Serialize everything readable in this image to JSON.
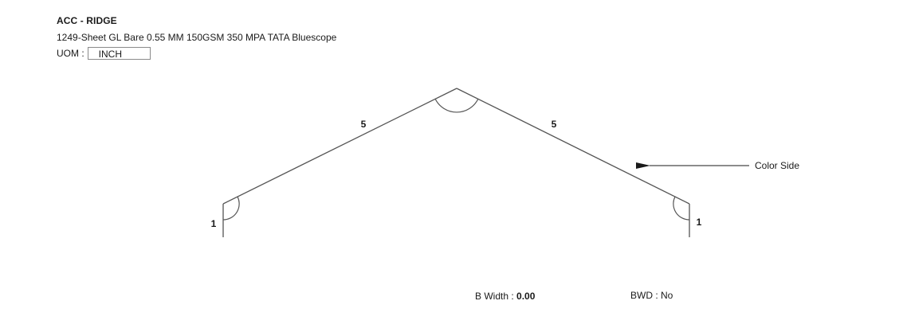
{
  "header": {
    "title": "ACC - RIDGE",
    "subtitle": "1249-Sheet GL Bare 0.55 MM 150GSM 350 MPA TATA Bluescope",
    "uom_label": "UOM :",
    "uom_value": "INCH"
  },
  "drawing": {
    "segments": [
      {
        "name": "left-leg",
        "label": "1"
      },
      {
        "name": "left-slope",
        "label": "5"
      },
      {
        "name": "right-slope",
        "label": "5"
      },
      {
        "name": "right-leg",
        "label": "1"
      }
    ],
    "color_side_label": "Color Side"
  },
  "footer": {
    "b_width_label": "B Width :",
    "b_width_value": "0.00",
    "bwd_label": "BWD :",
    "bwd_value": "No"
  }
}
